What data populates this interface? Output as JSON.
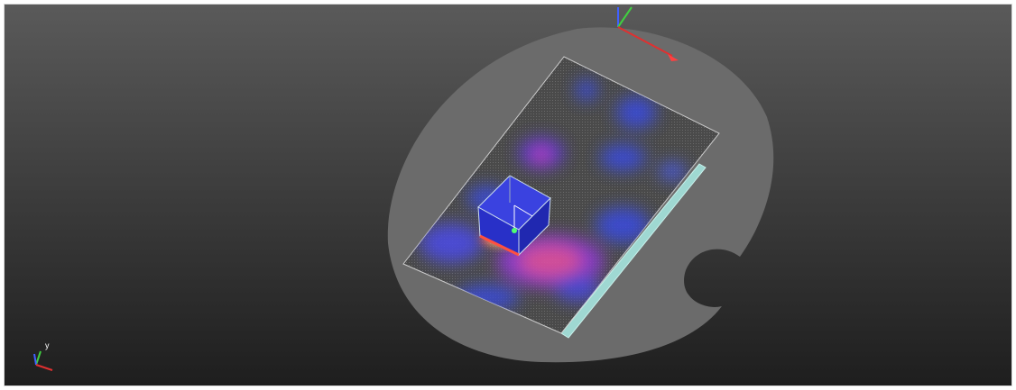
{
  "viewport": {
    "gizmo_label": "y"
  }
}
